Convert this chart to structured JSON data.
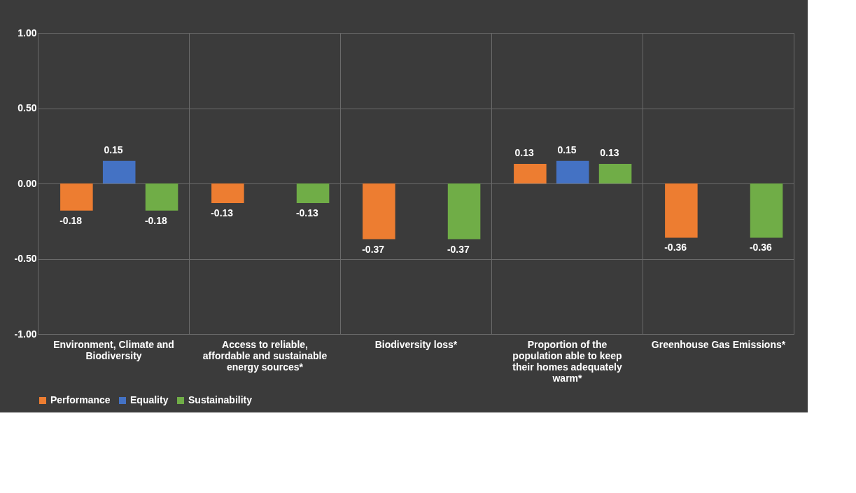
{
  "chart_data": {
    "type": "bar",
    "categories": [
      "Environment, Climate and Biodiversity",
      "Access to reliable, affordable and sustainable energy sources*",
      "Biodiversity loss*",
      "Proportion of the population able to keep their homes adequately warm*",
      "Greenhouse Gas Emissions*"
    ],
    "series": [
      {
        "name": "Performance",
        "color": "#ed7d31",
        "values": [
          -0.18,
          -0.13,
          -0.37,
          0.13,
          -0.36
        ]
      },
      {
        "name": "Equality",
        "color": "#4472c4",
        "values": [
          0.15,
          null,
          null,
          0.15,
          null
        ]
      },
      {
        "name": "Sustainability",
        "color": "#70ad47",
        "values": [
          -0.18,
          -0.13,
          -0.37,
          0.13,
          -0.36
        ]
      }
    ],
    "ylim": [
      -1,
      1
    ],
    "yticks": [
      {
        "value": -1,
        "label": "-1.00"
      },
      {
        "value": -0.5,
        "label": "-0.50"
      },
      {
        "value": 0,
        "label": "0.00"
      },
      {
        "value": 0.5,
        "label": "0.50"
      },
      {
        "value": 1,
        "label": "1.00"
      }
    ],
    "grid": true,
    "legend": "bottom",
    "data_labels": true
  }
}
